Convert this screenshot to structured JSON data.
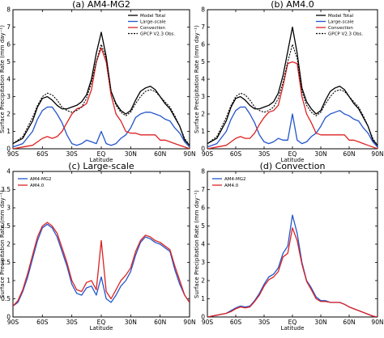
{
  "chart_data": [
    {
      "type": "line",
      "panel": "a",
      "title": "(a) AM4-MG2",
      "xlabel": "Latitude",
      "ylabel": "Surface Precipitation Rate (mm day⁻¹)",
      "xlim": [
        -90,
        90
      ],
      "ylim": [
        0,
        8
      ],
      "xticks": [
        "90S",
        "60S",
        "30S",
        "EQ",
        "30N",
        "60N",
        "90N"
      ],
      "yticks": [
        "0",
        "1",
        "2",
        "3",
        "4",
        "5",
        "6",
        "7",
        "8"
      ],
      "legend": "top-right",
      "x": [
        -90,
        -80,
        -70,
        -65,
        -60,
        -55,
        -50,
        -45,
        -40,
        -35,
        -30,
        -25,
        -20,
        -15,
        -10,
        -5,
        0,
        5,
        10,
        15,
        20,
        25,
        30,
        35,
        40,
        45,
        50,
        55,
        60,
        65,
        70,
        75,
        80,
        85,
        90
      ],
      "series": [
        {
          "name": "Model Total",
          "color": "#000000",
          "dash": "solid",
          "values": [
            0.3,
            0.6,
            1.6,
            2.4,
            2.9,
            3.0,
            2.8,
            2.5,
            2.3,
            2.3,
            2.4,
            2.5,
            2.7,
            3.1,
            4.0,
            5.5,
            6.7,
            5.3,
            3.3,
            2.6,
            2.2,
            2.0,
            2.2,
            2.8,
            3.3,
            3.5,
            3.6,
            3.4,
            3.0,
            2.6,
            2.3,
            1.8,
            1.3,
            0.5,
            0.2
          ]
        },
        {
          "name": "Large-scale",
          "color": "#2255cc",
          "dash": "solid",
          "values": [
            0.1,
            0.3,
            1.0,
            1.7,
            2.2,
            2.4,
            2.4,
            2.0,
            1.5,
            0.8,
            0.3,
            0.2,
            0.3,
            0.5,
            0.4,
            0.3,
            1.0,
            0.3,
            0.2,
            0.3,
            0.6,
            0.8,
            1.2,
            1.8,
            2.0,
            2.1,
            2.1,
            2.0,
            1.9,
            1.7,
            1.6,
            1.2,
            0.9,
            0.4,
            0.1
          ]
        },
        {
          "name": "Convection",
          "color": "#dd2222",
          "dash": "solid",
          "values": [
            0.0,
            0.1,
            0.2,
            0.4,
            0.6,
            0.7,
            0.6,
            0.7,
            1.0,
            1.5,
            2.0,
            2.3,
            2.4,
            2.6,
            3.4,
            5.0,
            5.8,
            5.0,
            3.1,
            2.0,
            1.6,
            1.0,
            0.9,
            0.9,
            0.8,
            0.8,
            0.8,
            0.8,
            0.5,
            0.5,
            0.4,
            0.3,
            0.2,
            0.1,
            0.0
          ]
        },
        {
          "name": "GPCP V2.3 Obs.",
          "color": "#000000",
          "dash": "dotted",
          "values": [
            0.3,
            0.7,
            1.8,
            2.5,
            3.0,
            3.2,
            3.1,
            2.8,
            2.4,
            2.2,
            2.1,
            2.2,
            2.4,
            2.9,
            3.8,
            5.0,
            6.0,
            5.2,
            3.3,
            2.5,
            2.1,
            1.9,
            2.1,
            2.6,
            3.0,
            3.3,
            3.4,
            3.3,
            3.0,
            2.7,
            2.4,
            1.9,
            1.3,
            0.6,
            0.2
          ]
        }
      ]
    },
    {
      "type": "line",
      "panel": "b",
      "title": "(b) AM4.0",
      "xlabel": "Latitude",
      "ylabel": "Surface Precipitation Rate (mm day⁻¹)",
      "xlim": [
        -90,
        90
      ],
      "ylim": [
        0,
        8
      ],
      "xticks": [
        "90S",
        "60S",
        "30S",
        "EQ",
        "30N",
        "60N",
        "90N"
      ],
      "yticks": [
        "0",
        "1",
        "2",
        "3",
        "4",
        "5",
        "6",
        "7",
        "8"
      ],
      "legend": "top-right",
      "x": [
        -90,
        -80,
        -70,
        -65,
        -60,
        -55,
        -50,
        -45,
        -40,
        -35,
        -30,
        -25,
        -20,
        -15,
        -10,
        -5,
        0,
        5,
        10,
        15,
        20,
        25,
        30,
        35,
        40,
        45,
        50,
        55,
        60,
        65,
        70,
        75,
        80,
        85,
        90
      ],
      "series": [
        {
          "name": "Model Total",
          "color": "#000000",
          "dash": "solid",
          "values": [
            0.3,
            0.6,
            1.6,
            2.4,
            2.9,
            3.0,
            2.8,
            2.5,
            2.3,
            2.3,
            2.4,
            2.5,
            2.7,
            3.2,
            4.2,
            5.6,
            7.0,
            5.5,
            3.5,
            2.7,
            2.3,
            2.0,
            2.2,
            2.8,
            3.3,
            3.5,
            3.6,
            3.4,
            3.0,
            2.6,
            2.3,
            1.8,
            1.3,
            0.5,
            0.2
          ]
        },
        {
          "name": "Large-scale",
          "color": "#2255cc",
          "dash": "solid",
          "values": [
            0.1,
            0.3,
            1.0,
            1.7,
            2.2,
            2.4,
            2.4,
            2.0,
            1.5,
            0.8,
            0.4,
            0.3,
            0.4,
            0.6,
            0.5,
            0.5,
            2.0,
            0.5,
            0.3,
            0.4,
            0.7,
            0.9,
            1.3,
            1.8,
            2.0,
            2.1,
            2.2,
            2.0,
            1.9,
            1.7,
            1.6,
            1.2,
            0.9,
            0.4,
            0.1
          ]
        },
        {
          "name": "Convection",
          "color": "#dd2222",
          "dash": "solid",
          "values": [
            0.0,
            0.1,
            0.2,
            0.4,
            0.6,
            0.7,
            0.6,
            0.6,
            0.9,
            1.4,
            1.8,
            2.1,
            2.2,
            2.5,
            3.6,
            4.9,
            5.0,
            4.9,
            3.0,
            2.0,
            1.5,
            0.9,
            0.8,
            0.8,
            0.8,
            0.8,
            0.8,
            0.8,
            0.5,
            0.5,
            0.4,
            0.3,
            0.2,
            0.1,
            0.0
          ]
        },
        {
          "name": "GPCP V2.3 Obs.",
          "color": "#000000",
          "dash": "dotted",
          "values": [
            0.3,
            0.7,
            1.8,
            2.5,
            3.0,
            3.2,
            3.1,
            2.8,
            2.4,
            2.2,
            2.1,
            2.2,
            2.4,
            2.9,
            3.8,
            5.0,
            6.0,
            5.2,
            3.3,
            2.5,
            2.1,
            1.9,
            2.1,
            2.6,
            3.0,
            3.3,
            3.4,
            3.3,
            3.0,
            2.7,
            2.4,
            1.9,
            1.3,
            0.6,
            0.2
          ]
        }
      ]
    },
    {
      "type": "line",
      "panel": "c",
      "title": "(c) Large-scale",
      "xlabel": "Latitude",
      "ylabel": "Surface Precipitation Rate (mm day⁻¹)",
      "xlim": [
        -90,
        90
      ],
      "ylim": [
        0,
        4
      ],
      "xticks": [
        "90S",
        "60S",
        "30S",
        "EQ",
        "30N",
        "60N",
        "90N"
      ],
      "yticks": [
        "0",
        "0.5",
        "1",
        "1.5",
        "2",
        "2.5",
        "3",
        "3.5",
        "4"
      ],
      "legend": "top-left",
      "x": [
        -90,
        -85,
        -80,
        -75,
        -70,
        -65,
        -60,
        -55,
        -50,
        -45,
        -40,
        -35,
        -30,
        -25,
        -20,
        -15,
        -10,
        -5,
        0,
        5,
        10,
        15,
        20,
        25,
        30,
        35,
        40,
        45,
        50,
        55,
        60,
        65,
        70,
        75,
        80,
        85,
        90
      ],
      "series": [
        {
          "name": "AM4-MG2",
          "color": "#2255cc",
          "dash": "solid",
          "values": [
            0.3,
            0.4,
            0.7,
            1.1,
            1.6,
            2.1,
            2.45,
            2.55,
            2.45,
            2.2,
            1.8,
            1.4,
            0.9,
            0.65,
            0.6,
            0.8,
            0.85,
            0.6,
            1.1,
            0.5,
            0.4,
            0.6,
            0.85,
            1.0,
            1.25,
            1.7,
            2.05,
            2.2,
            2.15,
            2.05,
            2.0,
            1.9,
            1.8,
            1.3,
            0.9,
            0.6,
            0.4
          ]
        },
        {
          "name": "AM4.0",
          "color": "#dd2222",
          "dash": "solid",
          "values": [
            0.3,
            0.45,
            0.75,
            1.2,
            1.7,
            2.2,
            2.5,
            2.6,
            2.5,
            2.3,
            1.9,
            1.5,
            1.0,
            0.75,
            0.7,
            0.95,
            1.0,
            0.75,
            2.1,
            0.7,
            0.5,
            0.75,
            1.0,
            1.15,
            1.35,
            1.8,
            2.1,
            2.25,
            2.2,
            2.1,
            2.05,
            1.95,
            1.85,
            1.4,
            1.0,
            0.6,
            0.4
          ]
        }
      ]
    },
    {
      "type": "line",
      "panel": "d",
      "title": "(d) Convection",
      "xlabel": "Latitude",
      "ylabel": "Surface Precipitation Rate (mm day⁻¹)",
      "xlim": [
        -90,
        90
      ],
      "ylim": [
        0,
        8
      ],
      "xticks": [
        "90S",
        "60S",
        "30S",
        "EQ",
        "30N",
        "60N",
        "90N"
      ],
      "yticks": [
        "0",
        "1",
        "2",
        "3",
        "4",
        "5",
        "6",
        "7",
        "8"
      ],
      "legend": "top-left",
      "x": [
        -90,
        -85,
        -80,
        -75,
        -70,
        -65,
        -60,
        -55,
        -50,
        -45,
        -40,
        -35,
        -30,
        -25,
        -20,
        -15,
        -10,
        -5,
        0,
        5,
        10,
        15,
        20,
        25,
        30,
        35,
        40,
        45,
        50,
        55,
        60,
        65,
        70,
        75,
        80,
        85,
        90
      ],
      "series": [
        {
          "name": "AM4-MG2",
          "color": "#2255cc",
          "dash": "solid",
          "values": [
            0.0,
            0.05,
            0.1,
            0.15,
            0.2,
            0.35,
            0.5,
            0.6,
            0.55,
            0.6,
            0.9,
            1.3,
            1.8,
            2.2,
            2.35,
            2.7,
            3.5,
            3.9,
            5.6,
            4.6,
            3.0,
            2.0,
            1.6,
            1.1,
            0.9,
            0.9,
            0.8,
            0.8,
            0.8,
            0.7,
            0.55,
            0.45,
            0.35,
            0.25,
            0.15,
            0.05,
            0.0
          ]
        },
        {
          "name": "AM4.0",
          "color": "#dd2222",
          "dash": "solid",
          "values": [
            0.0,
            0.05,
            0.1,
            0.15,
            0.2,
            0.3,
            0.45,
            0.55,
            0.5,
            0.55,
            0.85,
            1.2,
            1.7,
            2.05,
            2.2,
            2.5,
            3.3,
            3.5,
            4.9,
            4.2,
            2.9,
            1.95,
            1.5,
            1.0,
            0.85,
            0.85,
            0.8,
            0.8,
            0.8,
            0.7,
            0.55,
            0.45,
            0.35,
            0.25,
            0.15,
            0.05,
            0.0
          ]
        }
      ]
    }
  ]
}
